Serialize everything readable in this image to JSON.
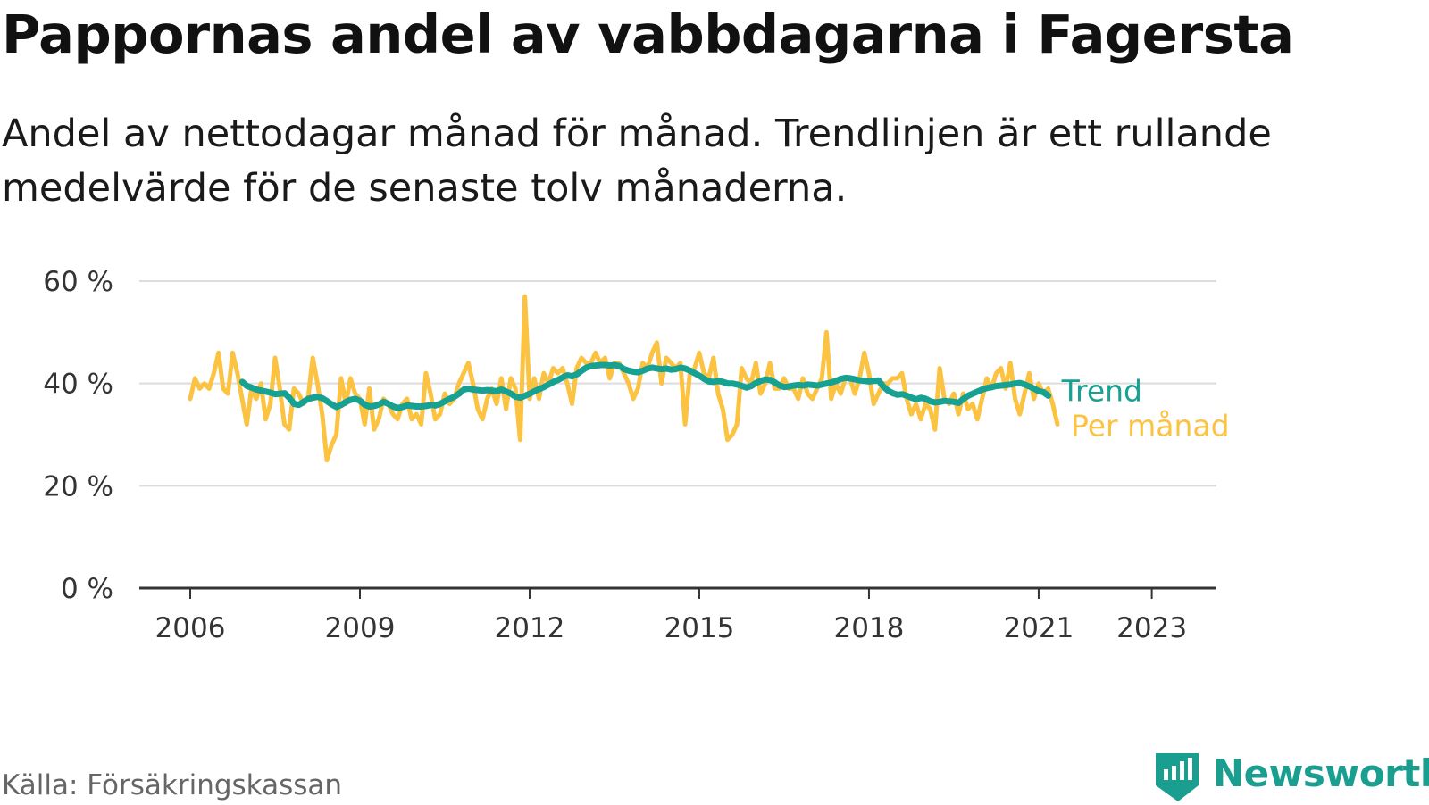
{
  "title": "Pappornas andel av vabbdagarna i Fagersta",
  "subtitle": "Andel av nettodagar månad för månad. Trendlinjen är ett rullande medelvärde för de senaste tolv månaderna.",
  "source": "Källa: Försäkringskassan",
  "brand": {
    "name": "Newsworthy",
    "icon": "newsworthy-chart-logo-icon"
  },
  "colors": {
    "trend": "#17a193",
    "monthly": "#fcc242",
    "grid": "#dddddd",
    "axis": "#333333"
  },
  "chart_data": {
    "type": "line",
    "xlabel": "",
    "ylabel": "",
    "ylim": [
      0,
      60
    ],
    "xlim": [
      2005.2,
      2024.4
    ],
    "grid": true,
    "y_ticks": [
      0,
      20,
      40,
      60
    ],
    "y_tick_labels": [
      "0 %",
      "20 %",
      "40 %",
      "60 %"
    ],
    "x_ticks": [
      2006,
      2009,
      2012,
      2015,
      2018,
      2021,
      2023
    ],
    "x_tick_labels": [
      "2006",
      "2009",
      "2012",
      "2015",
      "2018",
      "2021",
      "2023"
    ],
    "legend": {
      "placement": "right-end",
      "entries": [
        "Trend",
        "Per månad"
      ]
    },
    "series": [
      {
        "name": "Per månad",
        "color": "#fcc242",
        "x_start": 2006.0,
        "x_step": 0.08333,
        "values": [
          37,
          41,
          39,
          40,
          39,
          42,
          46,
          39,
          38,
          46,
          42,
          37,
          32,
          39,
          37,
          40,
          33,
          36,
          45,
          39,
          32,
          31,
          39,
          38,
          36,
          37,
          45,
          40,
          34,
          25,
          28,
          30,
          41,
          36,
          41,
          38,
          37,
          32,
          39,
          31,
          33,
          37,
          36,
          34,
          33,
          36,
          37,
          33,
          34,
          32,
          42,
          38,
          33,
          34,
          38,
          36,
          37,
          40,
          42,
          44,
          40,
          35,
          33,
          37,
          39,
          36,
          41,
          35,
          41,
          39,
          29,
          57,
          37,
          41,
          37,
          42,
          40,
          43,
          42,
          43,
          40,
          36,
          43,
          45,
          44,
          44,
          46,
          44,
          45,
          41,
          44,
          44,
          42,
          40,
          37,
          39,
          44,
          43,
          46,
          48,
          40,
          45,
          44,
          43,
          44,
          32,
          42,
          43,
          46,
          42,
          41,
          45,
          38,
          35,
          29,
          30,
          32,
          43,
          41,
          40,
          44,
          38,
          40,
          44,
          39,
          39,
          41,
          39,
          39,
          37,
          41,
          38,
          37,
          39,
          41,
          50,
          37,
          40,
          38,
          41,
          41,
          38,
          41,
          46,
          42,
          36,
          38,
          40,
          40,
          41,
          41,
          42,
          37,
          34,
          36,
          33,
          36,
          35,
          31,
          43,
          37,
          36,
          38,
          34,
          38,
          35,
          36,
          33,
          37,
          41,
          39,
          42,
          43,
          39,
          44,
          37,
          34,
          38,
          42,
          37,
          40,
          38,
          39,
          36,
          32
        ]
      },
      {
        "name": "Trend",
        "color": "#17a193",
        "x_start": 2006.92,
        "x_step": 0.08333,
        "values": [
          40.3,
          39.5,
          39.2,
          38.8,
          38.6,
          38.4,
          38.2,
          37.9,
          38.0,
          38.1,
          37.2,
          36.0,
          35.8,
          36.4,
          37.0,
          37.2,
          37.4,
          37.1,
          36.5,
          35.9,
          35.4,
          35.8,
          36.4,
          36.8,
          37.0,
          36.6,
          35.8,
          35.5,
          35.6,
          35.9,
          36.4,
          36.0,
          35.5,
          35.2,
          35.4,
          35.7,
          35.6,
          35.5,
          35.5,
          35.6,
          35.8,
          35.7,
          36.0,
          36.5,
          37.0,
          37.4,
          38.0,
          38.8,
          39.0,
          38.8,
          38.7,
          38.6,
          38.7,
          38.6,
          38.5,
          38.8,
          38.4,
          38.0,
          37.4,
          37.2,
          37.6,
          38.0,
          38.5,
          38.9,
          39.3,
          39.8,
          40.3,
          40.7,
          41.2,
          41.6,
          41.4,
          41.8,
          42.5,
          43.1,
          43.4,
          43.5,
          43.6,
          43.6,
          43.5,
          43.6,
          43.4,
          42.8,
          42.5,
          42.3,
          42.2,
          42.5,
          42.9,
          43.1,
          42.9,
          42.8,
          42.9,
          42.7,
          42.8,
          43.1,
          42.9,
          42.5,
          42.0,
          41.5,
          40.9,
          40.4,
          40.3,
          40.5,
          40.3,
          40.0,
          40.0,
          39.8,
          39.5,
          39.2,
          39.5,
          40.1,
          40.5,
          40.8,
          40.7,
          40.2,
          39.6,
          39.3,
          39.4,
          39.6,
          39.7,
          39.6,
          39.8,
          39.7,
          39.6,
          39.8,
          40.0,
          40.2,
          40.5,
          40.9,
          41.1,
          41.0,
          40.8,
          40.6,
          40.5,
          40.4,
          40.5,
          40.6,
          39.4,
          38.6,
          38.1,
          37.8,
          37.9,
          37.6,
          37.2,
          36.9,
          37.2,
          37.0,
          36.5,
          36.3,
          36.4,
          36.6,
          36.5,
          36.4,
          36.2,
          37.0,
          37.6,
          38.0,
          38.4,
          38.8,
          39.1,
          39.3,
          39.5,
          39.6,
          39.7,
          39.8,
          40.0,
          40.1,
          39.8,
          39.4,
          39.0,
          38.5,
          38.3,
          37.6
        ]
      }
    ]
  }
}
